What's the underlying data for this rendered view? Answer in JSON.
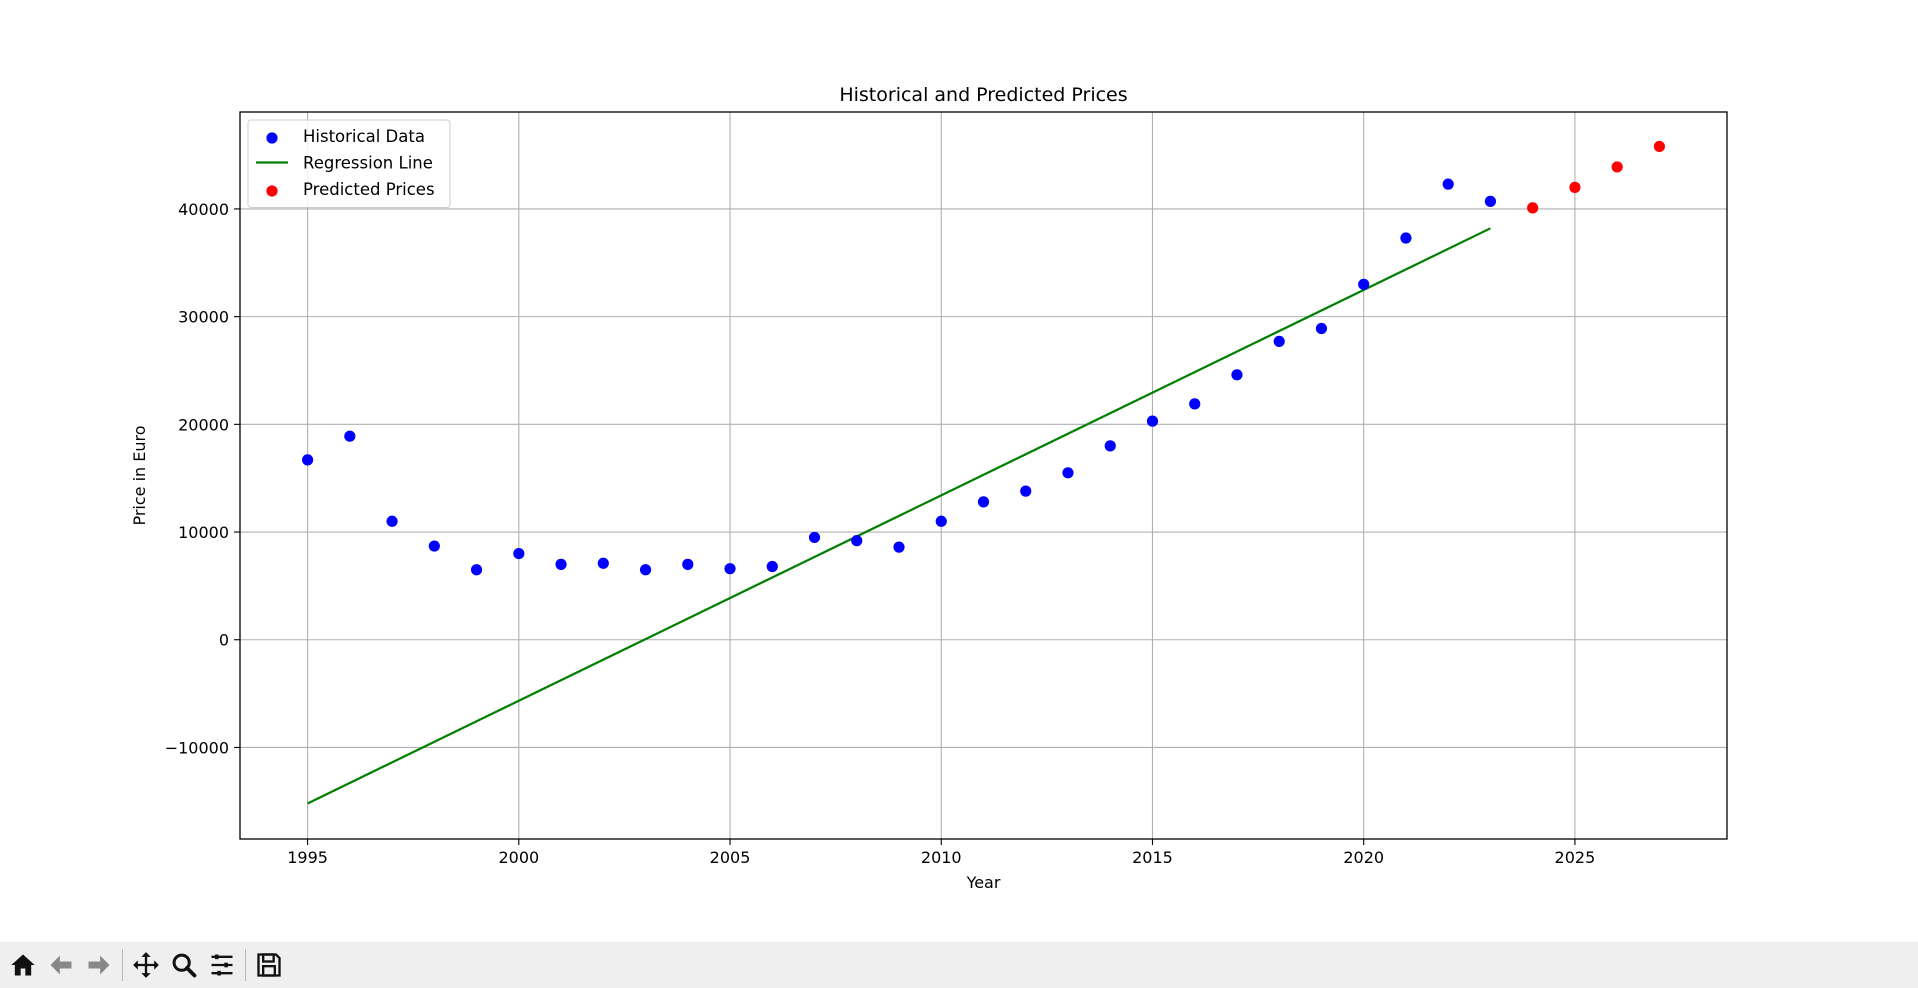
{
  "chart_data": {
    "type": "scatter",
    "title": "Historical and Predicted Prices",
    "xlabel": "Year",
    "ylabel": "Price in Euro",
    "xlim": [
      1993.4,
      2028.6
    ],
    "ylim": [
      -18500,
      49000
    ],
    "xticks": [
      1995,
      2000,
      2005,
      2010,
      2015,
      2020,
      2025
    ],
    "yticks": [
      -10000,
      0,
      10000,
      20000,
      30000,
      40000
    ],
    "grid": true,
    "legend_position": "top-left",
    "series": [
      {
        "name": "Historical Data",
        "kind": "scatter",
        "color": "#0000ff",
        "x": [
          1995,
          1996,
          1997,
          1998,
          1999,
          2000,
          2001,
          2002,
          2003,
          2004,
          2005,
          2006,
          2007,
          2008,
          2009,
          2010,
          2011,
          2012,
          2013,
          2014,
          2015,
          2016,
          2017,
          2018,
          2019,
          2020,
          2021,
          2022,
          2023
        ],
        "y": [
          16700,
          18900,
          11000,
          8700,
          6500,
          8000,
          7000,
          7100,
          6500,
          7000,
          6600,
          6800,
          9500,
          9200,
          8600,
          11000,
          12800,
          13800,
          15500,
          18000,
          20300,
          21900,
          24600,
          27700,
          28900,
          33000,
          37300,
          42300,
          40700
        ]
      },
      {
        "name": "Regression Line",
        "kind": "line",
        "color": "#008000",
        "x": [
          1995,
          2023
        ],
        "y": [
          -15200,
          38200
        ]
      },
      {
        "name": "Predicted Prices",
        "kind": "scatter",
        "color": "#ff0000",
        "x": [
          2024,
          2025,
          2026,
          2027
        ],
        "y": [
          40100,
          42000,
          43900,
          45800
        ]
      }
    ]
  },
  "toolbar": {
    "buttons": [
      {
        "name": "home-icon"
      },
      {
        "name": "back-arrow-icon"
      },
      {
        "name": "forward-arrow-icon"
      },
      {
        "name": "pan-icon"
      },
      {
        "name": "zoom-icon"
      },
      {
        "name": "configure-subplots-icon"
      },
      {
        "name": "save-icon"
      }
    ]
  }
}
